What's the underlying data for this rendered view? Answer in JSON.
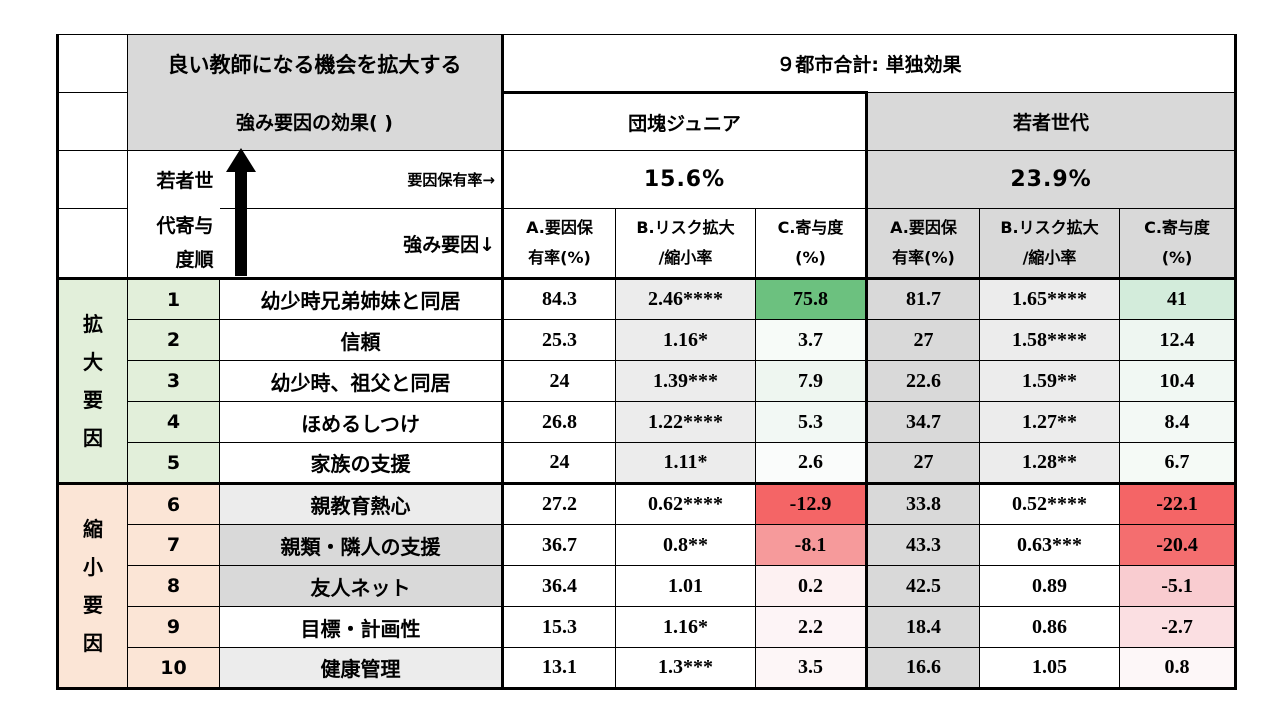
{
  "header": {
    "title_line1": "良い教師になる機会を拡大する",
    "title_line2": "強み要因の効果( )",
    "scope": "９都市合計: 単独効果",
    "group_a": "団塊ジュニア",
    "group_b": "若者世代",
    "rank_label_1": "若者世",
    "rank_label_2": "代寄与",
    "rank_label_3": "度順",
    "holding_rate_label": "要因保有率→",
    "strength_label": "強み要因↓",
    "rate_a": "15.6%",
    "rate_b": "23.9%",
    "col_a1": "A.要因保",
    "col_a2": "有率(%)",
    "col_b1": "B.リスク拡大",
    "col_b2": "/縮小率",
    "col_c1": "C.寄与度",
    "col_c2": "(%)"
  },
  "groups": {
    "expand": [
      "拡",
      "大",
      "要",
      "因"
    ],
    "shrink": [
      "縮",
      "小",
      "要",
      "因"
    ]
  },
  "rows": [
    {
      "rank": "1",
      "factor": "幼少時兄弟姉妹と同居",
      "a1": "84.3",
      "b1": "2.46****",
      "c1": "75.8",
      "a2": "81.7",
      "b2": "1.65****",
      "c2": "41"
    },
    {
      "rank": "2",
      "factor": "信頼",
      "a1": "25.3",
      "b1": "1.16*",
      "c1": "3.7",
      "a2": "27",
      "b2": "1.58****",
      "c2": "12.4"
    },
    {
      "rank": "3",
      "factor": "幼少時、祖父と同居",
      "a1": "24",
      "b1": "1.39***",
      "c1": "7.9",
      "a2": "22.6",
      "b2": "1.59**",
      "c2": "10.4"
    },
    {
      "rank": "4",
      "factor": "ほめるしつけ",
      "a1": "26.8",
      "b1": "1.22****",
      "c1": "5.3",
      "a2": "34.7",
      "b2": "1.27**",
      "c2": "8.4"
    },
    {
      "rank": "5",
      "factor": "家族の支援",
      "a1": "24",
      "b1": "1.11*",
      "c1": "2.6",
      "a2": "27",
      "b2": "1.28**",
      "c2": "6.7"
    },
    {
      "rank": "6",
      "factor": "親教育熱心",
      "a1": "27.2",
      "b1": "0.62****",
      "c1": "-12.9",
      "a2": "33.8",
      "b2": "0.52****",
      "c2": "-22.1"
    },
    {
      "rank": "7",
      "factor": "親類・隣人の支援",
      "a1": "36.7",
      "b1": "0.8**",
      "c1": "-8.1",
      "a2": "43.3",
      "b2": "0.63***",
      "c2": "-20.4"
    },
    {
      "rank": "8",
      "factor": "友人ネット",
      "a1": "36.4",
      "b1": "1.01",
      "c1": "0.2",
      "a2": "42.5",
      "b2": "0.89",
      "c2": "-5.1"
    },
    {
      "rank": "9",
      "factor": "目標・計画性",
      "a1": "15.3",
      "b1": "1.16*",
      "c1": "2.2",
      "a2": "18.4",
      "b2": "0.86",
      "c2": "-2.7"
    },
    {
      "rank": "10",
      "factor": "健康管理",
      "a1": "13.1",
      "b1": "1.3***",
      "c1": "3.5",
      "a2": "16.6",
      "b2": "1.05",
      "c2": "0.8"
    }
  ],
  "colors": {
    "c1": [
      "#6cc17f",
      "#f7fbf8",
      "#eef6f0",
      "#f2f8f4",
      "#fafcfb",
      "#f46566",
      "#f69a9b",
      "#fdf1f2",
      "#fdf4f6",
      "#fdf6f7"
    ],
    "c2": [
      "#d3ecdb",
      "#eef6f1",
      "#f1f8f3",
      "#f3f9f5",
      "#f5faf6",
      "#f46566",
      "#f46e6f",
      "#f9ccd0",
      "#fbdfe2",
      "#fdf7f8"
    ],
    "factor_bg": [
      "#ffffff",
      "#ffffff",
      "#ffffff",
      "#ffffff",
      "#ffffff",
      "#ececec",
      "#d9d9d9",
      "#d9d9d9",
      "#ffffff",
      "#ececec"
    ],
    "b_bg": [
      "#ececec",
      "#ececec",
      "#ececec",
      "#ececec",
      "#ececec",
      "#ffffff",
      "#ffffff",
      "#ffffff",
      "#ffffff",
      "#ffffff"
    ],
    "a2_bg": [
      "#d9d9d9",
      "#d9d9d9",
      "#d9d9d9",
      "#d9d9d9",
      "#d9d9d9",
      "#d9d9d9",
      "#d9d9d9",
      "#d9d9d9",
      "#d9d9d9",
      "#d9d9d9"
    ],
    "b2_bg": [
      "#ececec",
      "#ececec",
      "#ececec",
      "#ececec",
      "#ececec",
      "#ffffff",
      "#ffffff",
      "#ffffff",
      "#ffffff",
      "#ffffff"
    ]
  }
}
